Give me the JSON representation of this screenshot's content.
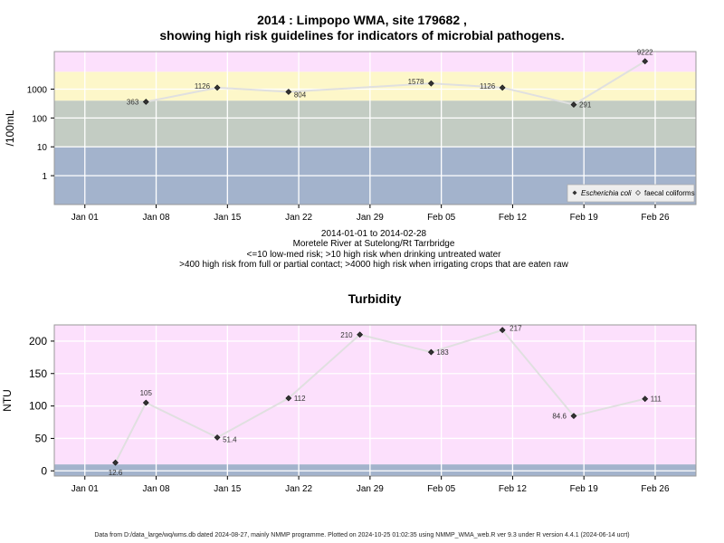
{
  "header": {
    "title_line1": "2014 : Limpopo WMA, site 179682 ,",
    "title_line2": "showing high risk guidelines for indicators of microbial pathogens."
  },
  "subtitle": {
    "date_range": "2014-01-01 to 2014-02-28",
    "site": "Moretele River at Sutelong/Rt Tarrbridge",
    "note1": "<=10 low-med risk; >10 high risk when drinking untreated water",
    "note2": ">400 high risk from full or partial contact; >4000 high risk when irrigating crops that are eaten raw"
  },
  "footer": {
    "text": "Data from D:/data_large/wq/wms.db dated 2024-08-27, mainly NMMP programme. Plotted on 2024-10-25 01:02:35 using NMMP_WMA_web.R ver 9.3 under R version 4.4.1 (2024-06-14 ucrt)"
  },
  "colors": {
    "band_low": "#a3b3cc",
    "band_mid": "#c3ccc3",
    "band_high": "#fdf7c9",
    "band_top": "#fce0fc",
    "line": "#e0e0e0",
    "marker": "#333333"
  },
  "chart_data": [
    {
      "type": "line",
      "title": "",
      "ylabel": "/100mL",
      "yscale": "log",
      "ylim": [
        0.1,
        20000
      ],
      "y_ticks": [
        1,
        10,
        100,
        1000
      ],
      "y_tick_labels": [
        "1",
        "10",
        "100",
        "1000"
      ],
      "x_ticks": [
        "2014-01-01",
        "2014-01-08",
        "2014-01-15",
        "2014-01-22",
        "2014-01-29",
        "2014-02-05",
        "2014-02-12",
        "2014-02-19",
        "2014-02-26"
      ],
      "x_tick_labels": [
        "Jan 01",
        "Jan 08",
        "Jan 15",
        "Jan 22",
        "Jan 29",
        "Feb 05",
        "Feb 12",
        "Feb 19",
        "Feb 26"
      ],
      "xlim": [
        "2013-12-29",
        "2014-03-02"
      ],
      "risk_bands": [
        {
          "from": 0.1,
          "to": 10
        },
        {
          "from": 10,
          "to": 400
        },
        {
          "from": 400,
          "to": 4000
        },
        {
          "from": 4000,
          "to": 20000
        }
      ],
      "legend": {
        "position": "bottom-right",
        "entries": [
          "Escherichia coli",
          "faecal coliforms"
        ]
      },
      "series": [
        {
          "name": "Escherichia coli",
          "x": [
            "2014-01-07",
            "2014-01-14",
            "2014-01-21",
            "2014-02-04",
            "2014-02-11",
            "2014-02-18",
            "2014-02-25"
          ],
          "y": [
            363,
            1126,
            804,
            1578,
            1126,
            291,
            9222
          ],
          "labels": [
            "363",
            "1126",
            "804",
            "1578",
            "1126",
            "291",
            "9222"
          ]
        }
      ]
    },
    {
      "type": "line",
      "title": "Turbidity",
      "ylabel": "NTU",
      "ylim": [
        -8,
        225
      ],
      "y_ticks": [
        0,
        50,
        100,
        150,
        200
      ],
      "y_tick_labels": [
        "0",
        "50",
        "100",
        "150",
        "200"
      ],
      "x_ticks": [
        "2014-01-01",
        "2014-01-08",
        "2014-01-15",
        "2014-01-22",
        "2014-01-29",
        "2014-02-05",
        "2014-02-12",
        "2014-02-19",
        "2014-02-26"
      ],
      "x_tick_labels": [
        "Jan 01",
        "Jan 08",
        "Jan 15",
        "Jan 22",
        "Jan 29",
        "Feb 05",
        "Feb 12",
        "Feb 19",
        "Feb 26"
      ],
      "xlim": [
        "2013-12-29",
        "2014-03-02"
      ],
      "risk_bands": [
        {
          "from": -8,
          "to": 10
        },
        {
          "from": 10,
          "to": 225
        }
      ],
      "series": [
        {
          "x": [
            "2014-01-04",
            "2014-01-07",
            "2014-01-14",
            "2014-01-21",
            "2014-01-28",
            "2014-02-04",
            "2014-02-11",
            "2014-02-18",
            "2014-02-25"
          ],
          "y": [
            12.6,
            105,
            51.4,
            112,
            210,
            183,
            217,
            84.6,
            111
          ],
          "labels": [
            "12.6",
            "105",
            "51.4",
            "112",
            "210",
            "183",
            "217",
            "84.6",
            "111"
          ]
        }
      ]
    }
  ]
}
